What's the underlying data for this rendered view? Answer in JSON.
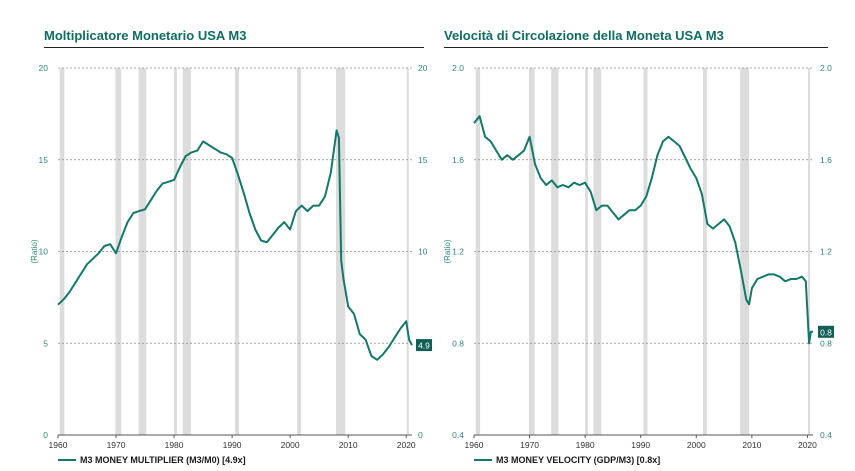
{
  "chart_data": [
    {
      "type": "line",
      "title": "Moltiplicatore Monetario USA M3",
      "ylabel": "(Ratio)",
      "xlim": [
        1960,
        2021
      ],
      "ylim": [
        0,
        20
      ],
      "yticks": [
        "0",
        "5",
        "10",
        "15",
        "20"
      ],
      "xticks": [
        "1960",
        "1970",
        "1980",
        "1990",
        "2000",
        "2010",
        "2020"
      ],
      "grid": true,
      "recessions": [
        [
          1960.3,
          1961.1
        ],
        [
          1969.9,
          1970.9
        ],
        [
          1973.9,
          1975.2
        ],
        [
          1980.0,
          1980.5
        ],
        [
          1981.5,
          1982.9
        ],
        [
          1990.5,
          1991.2
        ],
        [
          2001.2,
          2001.9
        ],
        [
          2007.9,
          2009.5
        ],
        [
          2020.1,
          2020.4
        ]
      ],
      "series": [
        {
          "name": "M3 MONEY MULTIPLIER (M3/M0) [4.9x]",
          "color": "#13786c",
          "points": [
            [
              1960,
              7.1
            ],
            [
              1961,
              7.4
            ],
            [
              1962,
              7.8
            ],
            [
              1963,
              8.3
            ],
            [
              1964,
              8.8
            ],
            [
              1965,
              9.3
            ],
            [
              1966,
              9.6
            ],
            [
              1967,
              9.9
            ],
            [
              1968,
              10.3
            ],
            [
              1969,
              10.4
            ],
            [
              1970,
              9.9
            ],
            [
              1971,
              10.8
            ],
            [
              1972,
              11.6
            ],
            [
              1973,
              12.1
            ],
            [
              1974,
              12.2
            ],
            [
              1975,
              12.3
            ],
            [
              1976,
              12.8
            ],
            [
              1977,
              13.3
            ],
            [
              1978,
              13.7
            ],
            [
              1979,
              13.8
            ],
            [
              1980,
              13.9
            ],
            [
              1981,
              14.6
            ],
            [
              1982,
              15.2
            ],
            [
              1983,
              15.4
            ],
            [
              1984,
              15.5
            ],
            [
              1985,
              16.0
            ],
            [
              1986,
              15.8
            ],
            [
              1987,
              15.6
            ],
            [
              1988,
              15.4
            ],
            [
              1989,
              15.3
            ],
            [
              1990,
              15.1
            ],
            [
              1991,
              14.2
            ],
            [
              1992,
              13.2
            ],
            [
              1993,
              12.1
            ],
            [
              1994,
              11.2
            ],
            [
              1995,
              10.6
            ],
            [
              1996,
              10.5
            ],
            [
              1997,
              10.9
            ],
            [
              1998,
              11.3
            ],
            [
              1999,
              11.6
            ],
            [
              2000,
              11.2
            ],
            [
              2001,
              12.2
            ],
            [
              2002,
              12.5
            ],
            [
              2003,
              12.2
            ],
            [
              2004,
              12.5
            ],
            [
              2005,
              12.5
            ],
            [
              2006,
              13.0
            ],
            [
              2007,
              14.3
            ],
            [
              2008,
              16.6
            ],
            [
              2008.4,
              16.2
            ],
            [
              2008.8,
              9.5
            ],
            [
              2009.2,
              8.5
            ],
            [
              2010,
              7.0
            ],
            [
              2011,
              6.6
            ],
            [
              2012,
              5.5
            ],
            [
              2013,
              5.2
            ],
            [
              2014,
              4.3
            ],
            [
              2015,
              4.1
            ],
            [
              2016,
              4.4
            ],
            [
              2017,
              4.8
            ],
            [
              2018,
              5.3
            ],
            [
              2019,
              5.8
            ],
            [
              2020,
              6.2
            ],
            [
              2020.5,
              5.2
            ],
            [
              2021,
              4.9
            ]
          ]
        }
      ],
      "last_value_label": "4.9",
      "legend_position": "bottom-left"
    },
    {
      "type": "line",
      "title": "Velocità di Circolazione della Moneta USA M3",
      "ylabel": "(Ratio)",
      "xlim": [
        1960,
        2021
      ],
      "ylim": [
        0.4,
        2.0
      ],
      "yticks": [
        "0.4",
        "0.8",
        "1.2",
        "1.6",
        "2.0"
      ],
      "xticks": [
        "1960",
        "1970",
        "1980",
        "1990",
        "2000",
        "2010",
        "2020"
      ],
      "grid": true,
      "recessions": [
        [
          1960.3,
          1961.1
        ],
        [
          1969.9,
          1970.9
        ],
        [
          1973.9,
          1975.2
        ],
        [
          1980.0,
          1980.5
        ],
        [
          1981.5,
          1982.9
        ],
        [
          1990.5,
          1991.2
        ],
        [
          2001.2,
          2001.9
        ],
        [
          2007.9,
          2009.5
        ],
        [
          2020.1,
          2020.4
        ]
      ],
      "series": [
        {
          "name": "M3 MONEY VELOCITY (GDP/M3) [0.8x]",
          "color": "#13786c",
          "points": [
            [
              1960,
              1.76
            ],
            [
              1961,
              1.79
            ],
            [
              1962,
              1.7
            ],
            [
              1963,
              1.68
            ],
            [
              1964,
              1.64
            ],
            [
              1965,
              1.6
            ],
            [
              1966,
              1.62
            ],
            [
              1967,
              1.6
            ],
            [
              1968,
              1.62
            ],
            [
              1969,
              1.64
            ],
            [
              1970,
              1.7
            ],
            [
              1971,
              1.58
            ],
            [
              1972,
              1.52
            ],
            [
              1973,
              1.49
            ],
            [
              1974,
              1.51
            ],
            [
              1975,
              1.48
            ],
            [
              1976,
              1.49
            ],
            [
              1977,
              1.48
            ],
            [
              1978,
              1.5
            ],
            [
              1979,
              1.49
            ],
            [
              1980,
              1.5
            ],
            [
              1981,
              1.46
            ],
            [
              1982,
              1.38
            ],
            [
              1983,
              1.4
            ],
            [
              1984,
              1.4
            ],
            [
              1985,
              1.37
            ],
            [
              1986,
              1.34
            ],
            [
              1987,
              1.36
            ],
            [
              1988,
              1.38
            ],
            [
              1989,
              1.38
            ],
            [
              1990,
              1.4
            ],
            [
              1991,
              1.44
            ],
            [
              1992,
              1.52
            ],
            [
              1993,
              1.62
            ],
            [
              1994,
              1.68
            ],
            [
              1995,
              1.7
            ],
            [
              1996,
              1.68
            ],
            [
              1997,
              1.66
            ],
            [
              1998,
              1.61
            ],
            [
              1999,
              1.56
            ],
            [
              2000,
              1.52
            ],
            [
              2001,
              1.45
            ],
            [
              2002,
              1.32
            ],
            [
              2003,
              1.3
            ],
            [
              2004,
              1.32
            ],
            [
              2005,
              1.34
            ],
            [
              2006,
              1.31
            ],
            [
              2007,
              1.24
            ],
            [
              2008,
              1.12
            ],
            [
              2009,
              0.99
            ],
            [
              2009.5,
              0.97
            ],
            [
              2010,
              1.04
            ],
            [
              2011,
              1.08
            ],
            [
              2012,
              1.09
            ],
            [
              2013,
              1.1
            ],
            [
              2014,
              1.1
            ],
            [
              2015,
              1.09
            ],
            [
              2016,
              1.07
            ],
            [
              2017,
              1.08
            ],
            [
              2018,
              1.08
            ],
            [
              2019,
              1.09
            ],
            [
              2019.7,
              1.07
            ],
            [
              2020.3,
              0.8
            ],
            [
              2020.6,
              0.85
            ],
            [
              2021,
              0.85
            ]
          ]
        }
      ],
      "last_value_label": "0.8",
      "legend_position": "bottom-left"
    }
  ]
}
